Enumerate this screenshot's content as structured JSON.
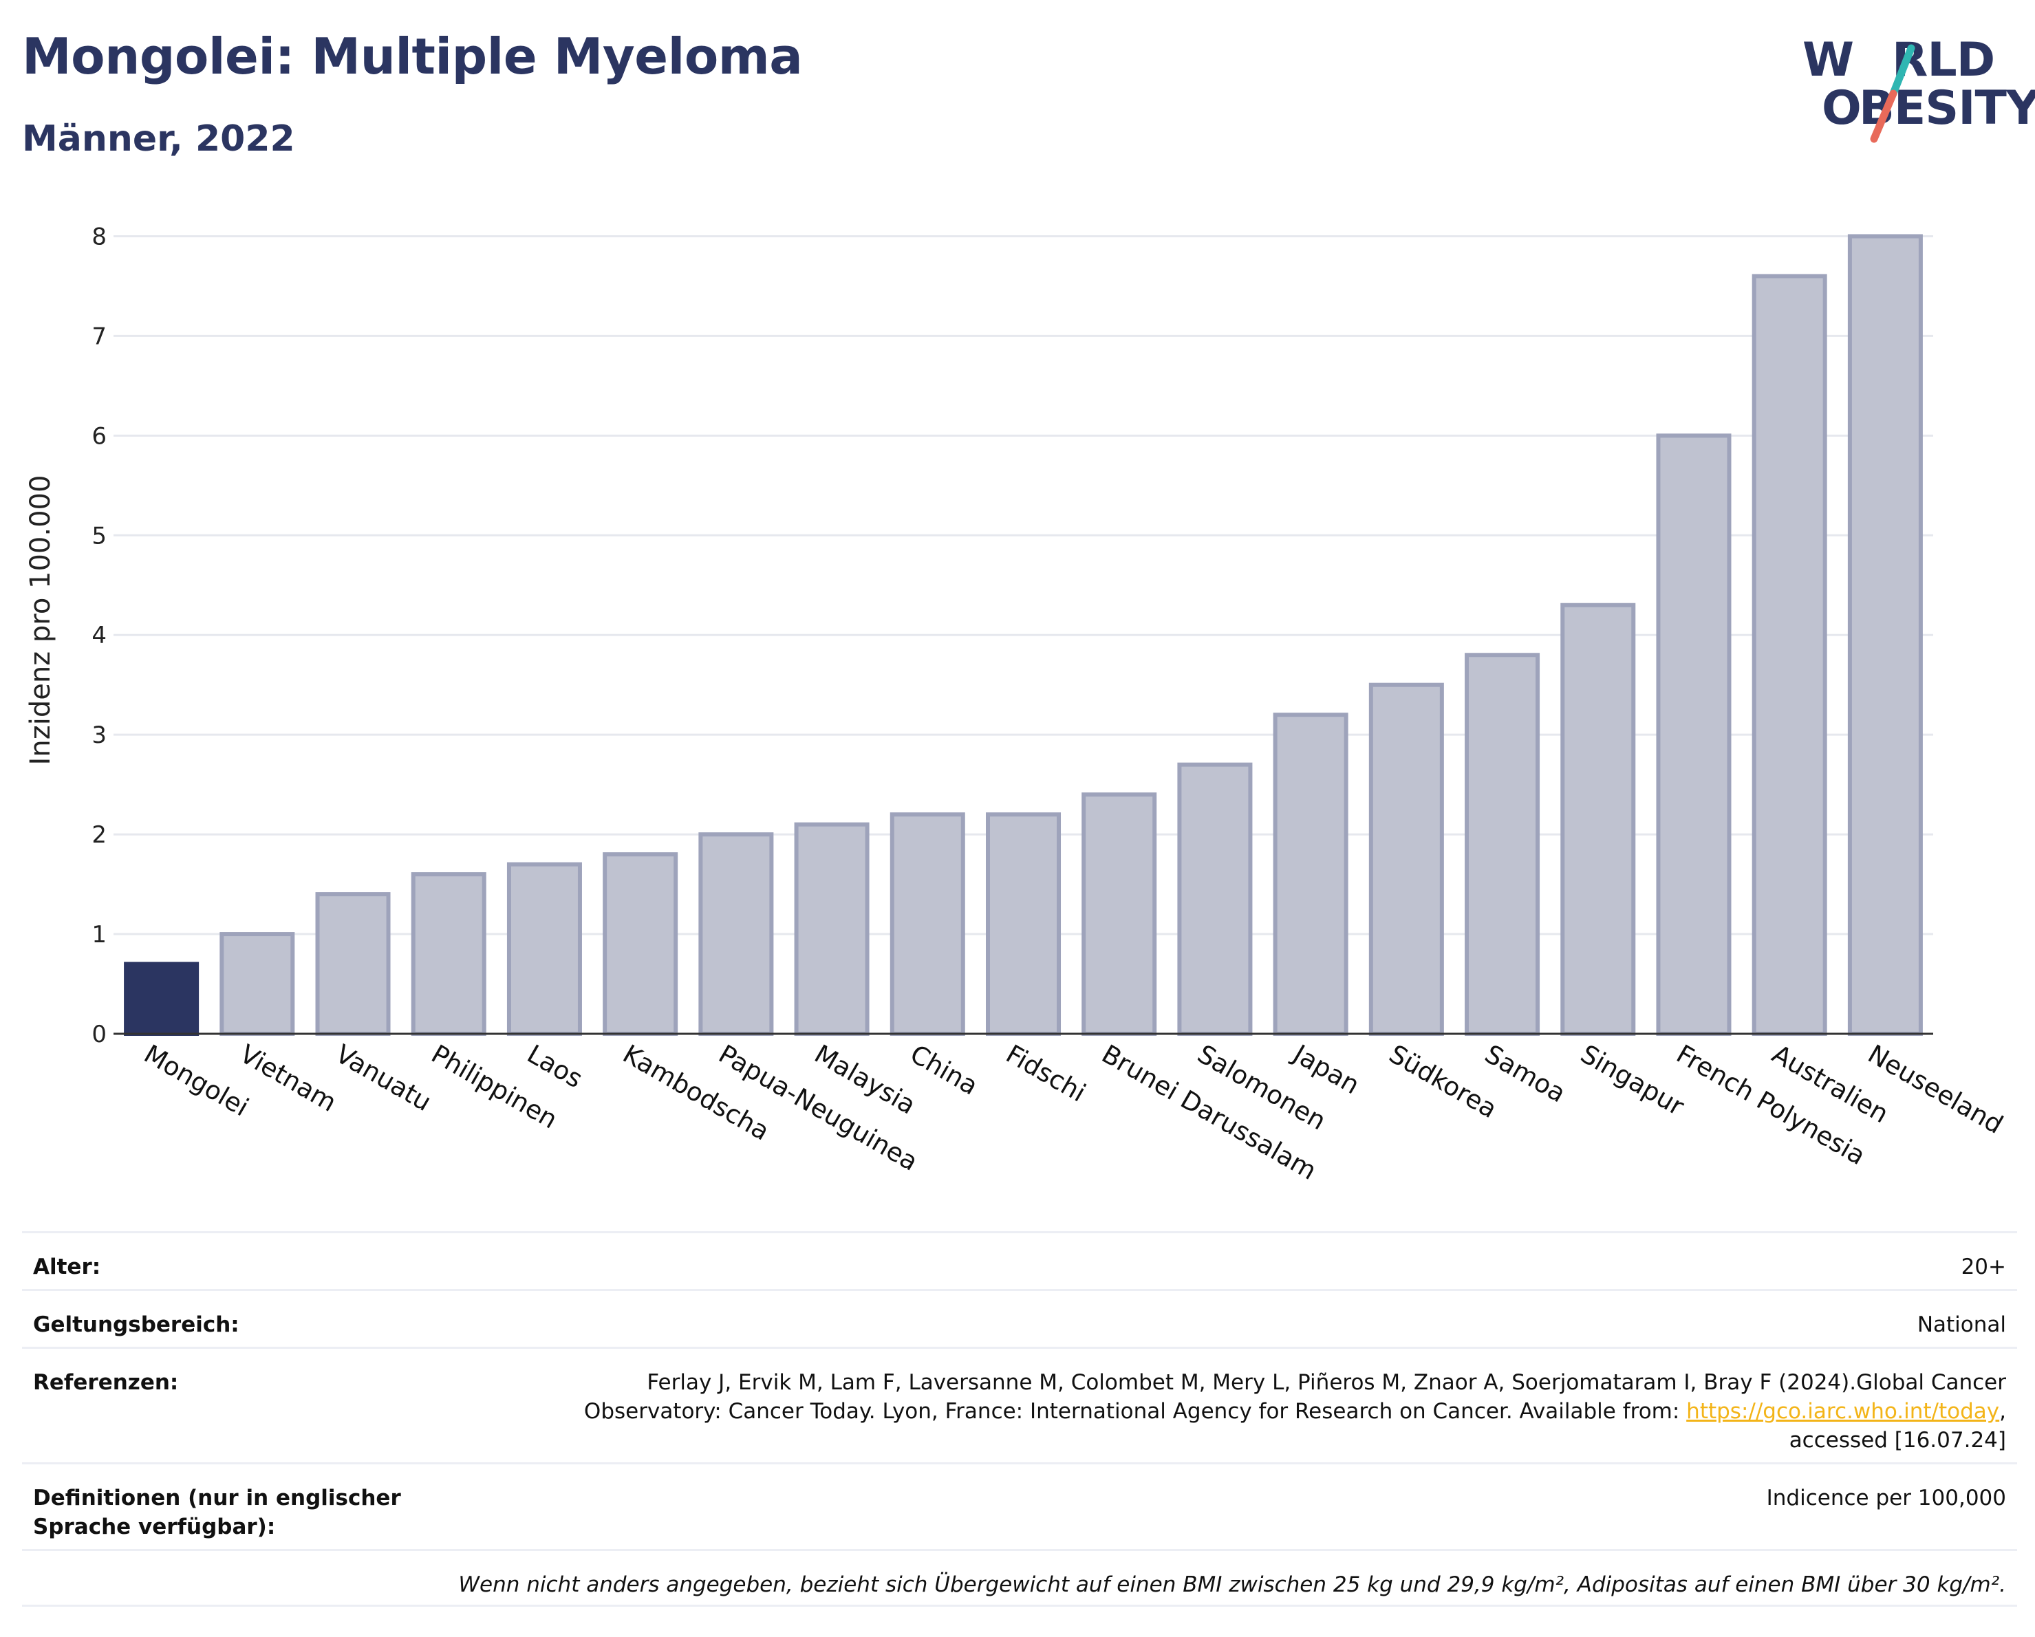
{
  "header": {
    "title": "Mongolei: Multiple Myeloma",
    "subtitle": "Männer, 2022",
    "logo_top": "W",
    "logo_top_end": "RLD",
    "logo_bottom_start": "O",
    "logo_bottom": "BESITY",
    "logo_colors": {
      "text": "#2b3561",
      "slash_top": "#2fb6b2",
      "slash_bottom": "#e86a5a"
    }
  },
  "chart_data": {
    "type": "bar",
    "ylabel": "Inzidenz pro 100.000",
    "ylim": [
      0,
      8.3
    ],
    "yticks": [
      0,
      1,
      2,
      3,
      4,
      5,
      6,
      7,
      8
    ],
    "grid": true,
    "categories": [
      "Mongolei",
      "Vietnam",
      "Vanuatu",
      "Philippinen",
      "Laos",
      "Kambodscha",
      "Papua-Neuguinea",
      "Malaysia",
      "China",
      "Fidschi",
      "Brunei Darussalam",
      "Salomonen",
      "Japan",
      "Südkorea",
      "Samoa",
      "Singapur",
      "French Polynesia",
      "Australien",
      "Neuseeland"
    ],
    "values": [
      0.7,
      1.0,
      1.4,
      1.6,
      1.7,
      1.8,
      2.0,
      2.1,
      2.2,
      2.2,
      2.4,
      2.7,
      3.2,
      3.5,
      3.8,
      4.3,
      6.0,
      7.6,
      8.0
    ],
    "highlight_index": 0,
    "colors": {
      "highlight": "#2b3561",
      "bar_fill": "#bfc2d0",
      "bar_stroke": "#9ea3bb",
      "grid": "#e6e8ee",
      "axis": "#333333"
    }
  },
  "info": {
    "age_label": "Alter:",
    "age_value": "20+",
    "scope_label": "Geltungsbereich:",
    "scope_value": "National",
    "refs_label": "Referenzen:",
    "refs_line1": "Ferlay J, Ervik M, Lam F, Laversanne M, Colombet M, Mery L, Piñeros M, Znaor A, Soerjomataram I, Bray F (2024).Global Cancer",
    "refs_line2_pre": "Observatory: Cancer Today. Lyon, France: International Agency for Research on Cancer. Available from: ",
    "refs_link": "https://gco.iarc.who.int/today",
    "refs_line2_post": ",",
    "refs_line3": "accessed [16.07.24]",
    "defs_label": "Definitionen (nur in englischer Sprache verfügbar):",
    "defs_value": "Indicence per 100,000",
    "note": "Wenn nicht anders angegeben, bezieht sich Übergewicht auf einen BMI zwischen 25 kg und 29,9 kg/m², Adipositas auf einen BMI über 30 kg/m²."
  }
}
